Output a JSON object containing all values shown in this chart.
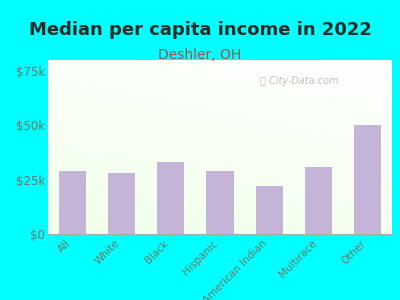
{
  "title": "Median per capita income in 2022",
  "subtitle": "Deshler, OH",
  "categories": [
    "All",
    "White",
    "Black",
    "Hispanic",
    "American Indian",
    "Multirace",
    "Other"
  ],
  "values": [
    29000,
    28000,
    33000,
    29000,
    22000,
    31000,
    50000
  ],
  "bar_color": "#c4b4d8",
  "background_outer": "#00ffff",
  "title_color": "#2a2a2a",
  "subtitle_color": "#a05050",
  "tick_label_color": "#6a7a6a",
  "ytick_labels": [
    "$0",
    "$25k",
    "$50k",
    "$75k"
  ],
  "ytick_values": [
    0,
    25000,
    50000,
    75000
  ],
  "ylim": [
    0,
    80000
  ],
  "watermark": "City-Data.com",
  "title_fontsize": 13,
  "subtitle_fontsize": 10
}
